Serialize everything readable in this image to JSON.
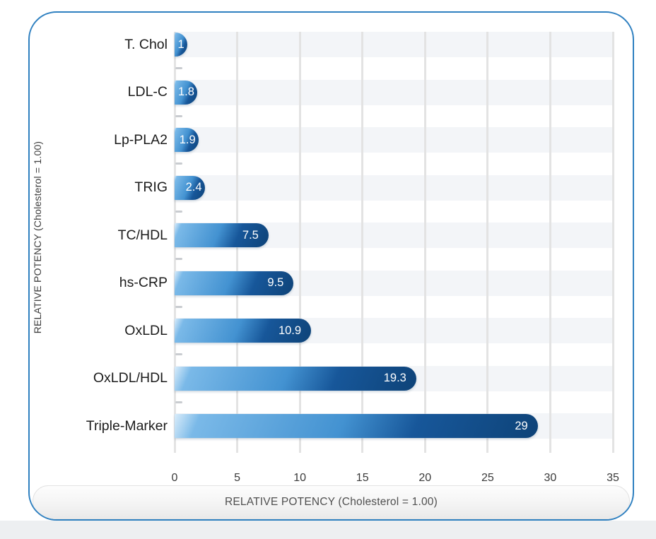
{
  "chart_data": {
    "type": "bar",
    "orientation": "horizontal",
    "categories": [
      "T. Chol",
      "LDL-C",
      "Lp-PLA2",
      "TRIG",
      "TC/HDL",
      "hs-CRP",
      "OxLDL",
      "OxLDL/HDL",
      "Triple-Marker"
    ],
    "values": [
      1,
      1.8,
      1.9,
      2.4,
      7.5,
      9.5,
      10.9,
      19.3,
      29
    ],
    "value_labels": [
      "1",
      "1.8",
      "1.9",
      "2.4",
      "7.5",
      "9.5",
      "10.9",
      "19.3",
      "29"
    ],
    "x_ticks": [
      0,
      5,
      10,
      15,
      20,
      25,
      30,
      35
    ],
    "xlim": [
      0,
      35
    ],
    "xlabel": "RELATIVE POTENCY (Cholesterol = 1.00)",
    "ylabel": "RELATIVE POTENCY (Cholesterol = 1.00)",
    "grid": "vertical-gridlines-with-alternating-row-bands",
    "legend": "none",
    "colors": {
      "card_border": "#2f80c0",
      "bar_gradient_light": "#7ab9e8",
      "bar_gradient_mid": "#4392d1",
      "bar_gradient_deep": "#17579a",
      "bar_gradient_dark": "#0e4378",
      "row_band": "#f3f5f8",
      "gridline": "#e3e3e3",
      "minor_dash": "#c9ccd0",
      "value_label_text": "#ffffff",
      "category_text": "#1c1c1c",
      "tick_text": "#3a3a3a",
      "axis_title_text": "#3e3e3e",
      "bottom_strip": "#edeff1"
    }
  },
  "footer_banner": {
    "label": "RELATIVE POTENCY (Cholesterol = 1.00)"
  }
}
